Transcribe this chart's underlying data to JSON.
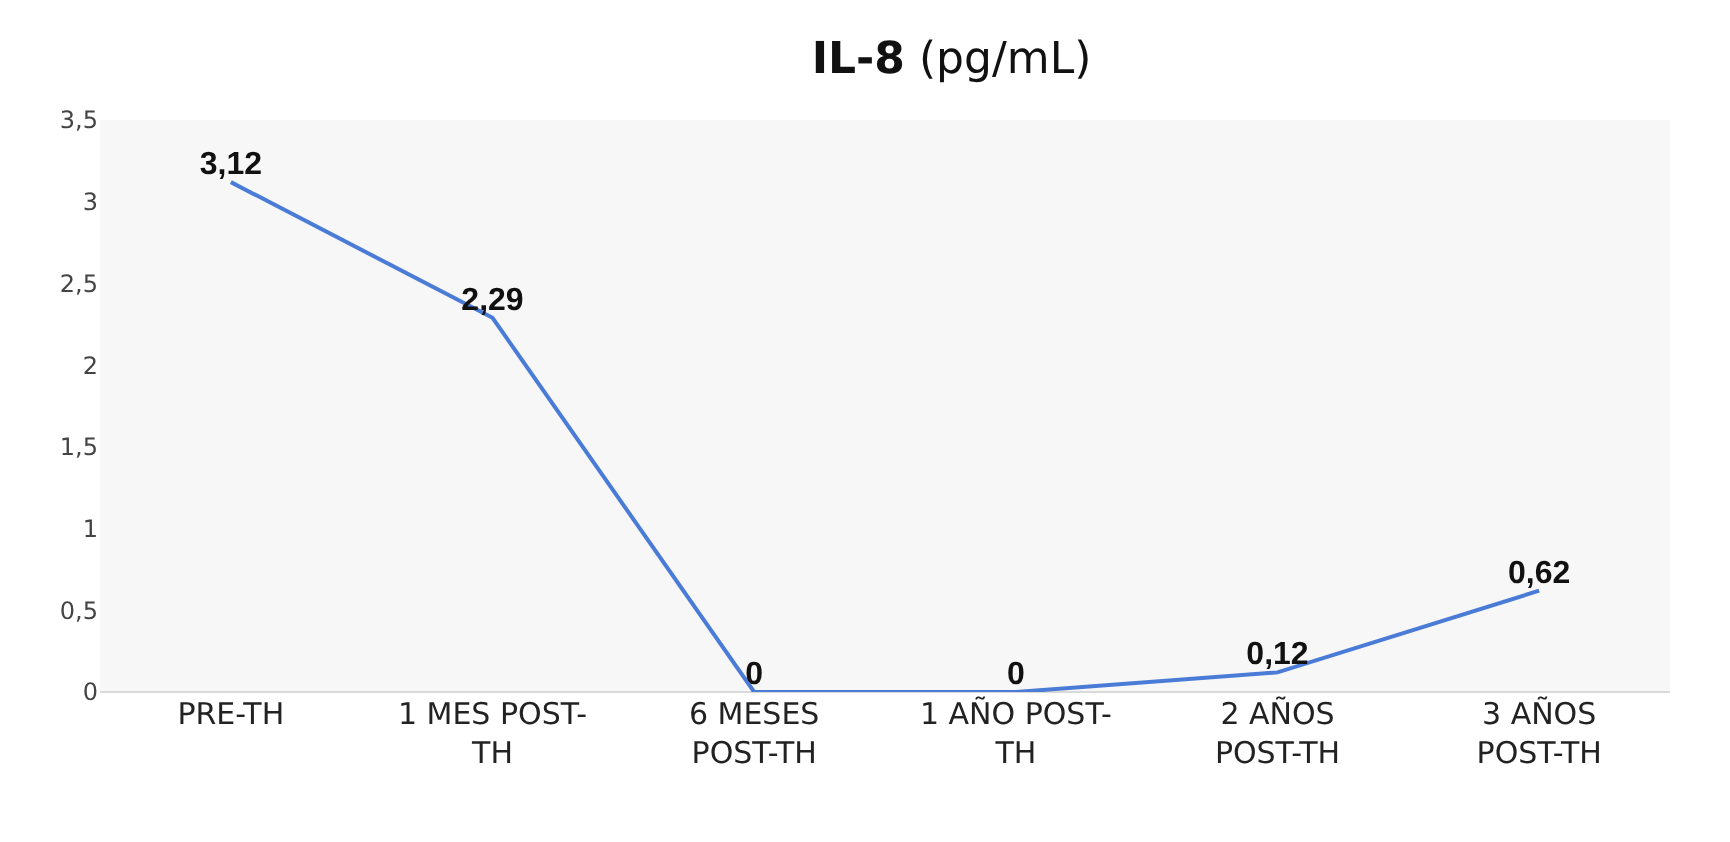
{
  "chart_data": {
    "type": "line",
    "title": "IL-8 (pg/mL)",
    "categories": [
      "PRE-TH",
      "1 MES POST-TH",
      "6 MESES POST-TH",
      "1 AÑO POST-TH",
      "2 AÑOS POST-TH",
      "3 AÑOS POST-TH"
    ],
    "values": [
      3.12,
      2.29,
      0,
      0,
      0.12,
      0.62
    ],
    "value_labels": [
      "3,12",
      "2,29",
      "0",
      "0",
      "0,12",
      "0,62"
    ],
    "color": "#4a7bd6",
    "marker": "none",
    "line_style": "solid",
    "grid": false,
    "ylim": [
      0,
      3.5
    ],
    "yticks": [
      0,
      {
        "value": 0.5,
        "label": "0,5"
      },
      1,
      {
        "value": 1.5,
        "label": "1,5"
      },
      2,
      {
        "value": 2.5,
        "label": "2,5"
      },
      3,
      {
        "value": 3.5,
        "label": "3,5"
      }
    ]
  }
}
